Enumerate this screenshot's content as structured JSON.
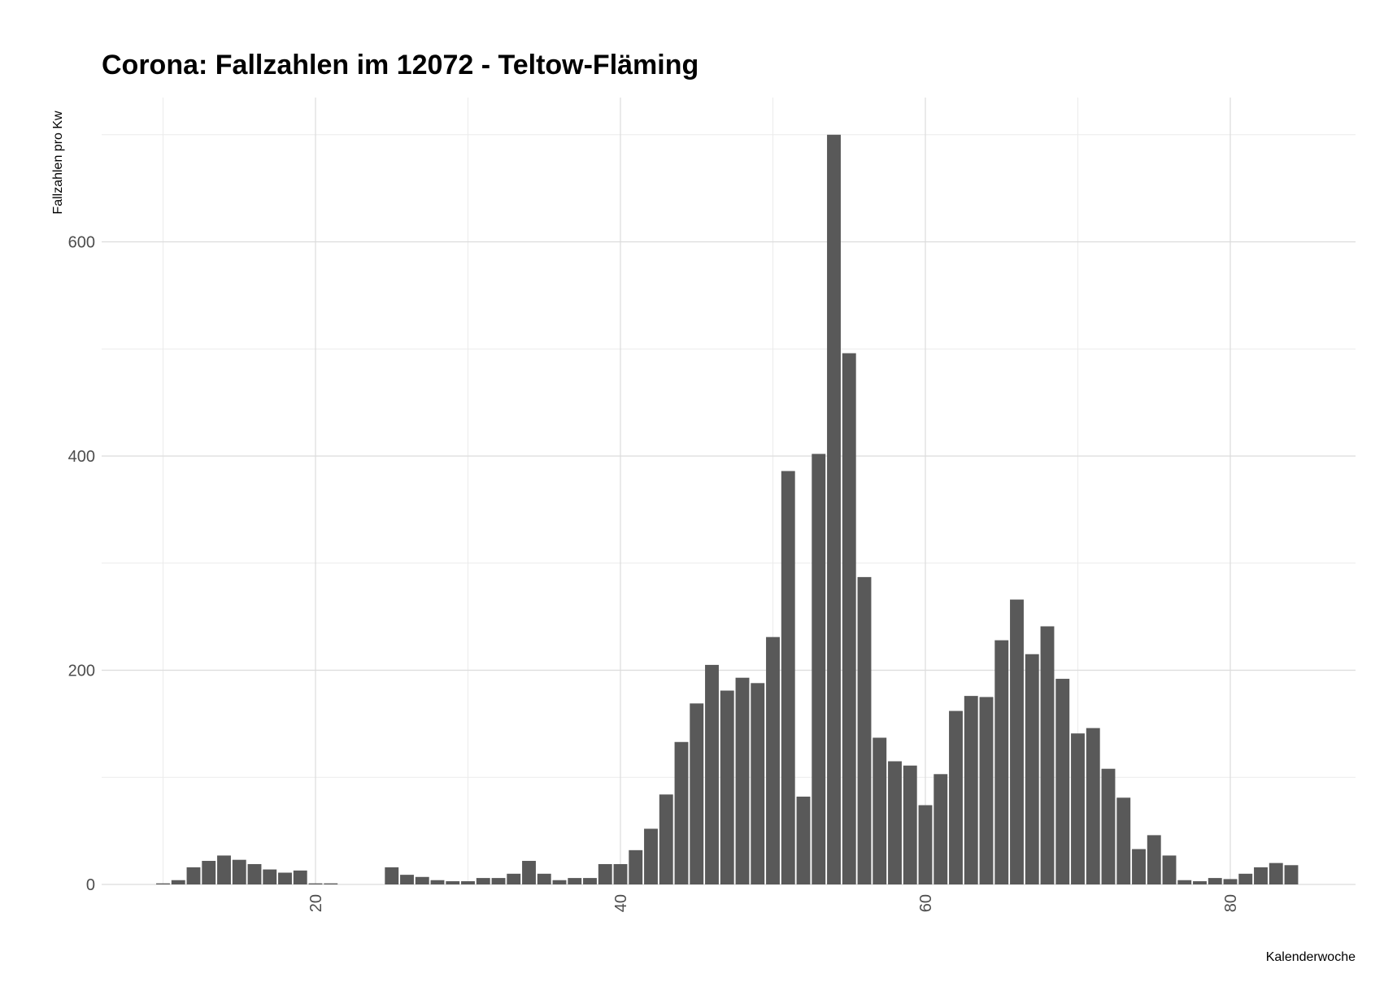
{
  "chart_data": {
    "type": "bar",
    "title": "Corona: Fallzahlen im 12072 - Teltow-Fläming",
    "xlabel": "Kalenderwoche",
    "ylabel": "Fallzahlen pro Kw",
    "xlim": [
      5,
      89
    ],
    "ylim": [
      0,
      700
    ],
    "x_ticks": [
      20,
      40,
      60,
      80
    ],
    "y_ticks": [
      0,
      200,
      400,
      600
    ],
    "x_minor_ticks": [
      10,
      30,
      50,
      70
    ],
    "y_minor_ticks": [
      100,
      300,
      500,
      700
    ],
    "grid": true,
    "bar_color": "#595959",
    "x": [
      10,
      11,
      12,
      13,
      14,
      15,
      16,
      17,
      18,
      19,
      20,
      21,
      25,
      26,
      27,
      28,
      29,
      30,
      31,
      32,
      33,
      34,
      35,
      36,
      37,
      38,
      39,
      40,
      41,
      42,
      43,
      44,
      45,
      46,
      47,
      48,
      49,
      50,
      51,
      52,
      53,
      54,
      55,
      56,
      57,
      58,
      59,
      60,
      61,
      62,
      63,
      64,
      65,
      66,
      67,
      68,
      69,
      70,
      71,
      72,
      73,
      74,
      75,
      76,
      77,
      78,
      79,
      80,
      81,
      82,
      83,
      84
    ],
    "values": [
      1,
      4,
      16,
      22,
      27,
      23,
      19,
      14,
      11,
      13,
      1,
      1,
      16,
      9,
      7,
      4,
      3,
      3,
      6,
      6,
      10,
      22,
      10,
      4,
      6,
      6,
      19,
      19,
      32,
      52,
      84,
      133,
      169,
      205,
      181,
      193,
      188,
      231,
      386,
      82,
      402,
      700,
      496,
      287,
      137,
      115,
      111,
      74,
      103,
      162,
      176,
      175,
      228,
      266,
      215,
      241,
      192,
      141,
      146,
      108,
      81,
      33,
      46,
      27,
      4,
      3,
      6,
      5,
      10,
      16,
      20,
      18
    ]
  }
}
